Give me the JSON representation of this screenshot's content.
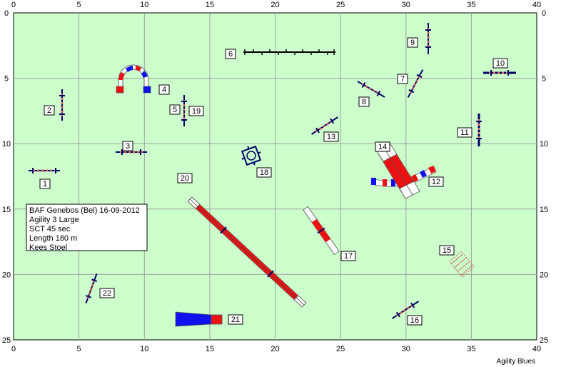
{
  "course": {
    "grid": true,
    "x_range": [
      0,
      40
    ],
    "y_range": [
      0,
      25
    ],
    "x_ticks": [
      "0",
      "5",
      "10",
      "15",
      "20",
      "25",
      "30",
      "35",
      "40"
    ],
    "y_ticks": [
      "0",
      "5",
      "10",
      "15",
      "20",
      "25"
    ]
  },
  "info_box": {
    "line1": "BAF Genebos (Bel) 16-09-2012",
    "line2": "Agility 3 Large",
    "line3": "SCT 45 sec",
    "line4": "Length 180 m",
    "line5": "Kees Stoel"
  },
  "credit": "Agility Blues",
  "obstacle_numbers": {
    "n1": "1",
    "n2": "2",
    "n3": "3",
    "n4": "4",
    "n5": "5",
    "n6": "6",
    "n7": "7",
    "n8": "8",
    "n9": "9",
    "n10": "10",
    "n11": "11",
    "n12": "12",
    "n13": "13",
    "n14": "14",
    "n15": "15",
    "n16": "16",
    "n17": "17",
    "n18": "18",
    "n19": "19",
    "n20": "20",
    "n21": "21",
    "n22": "22"
  },
  "colors": {
    "field": "#ccffcc",
    "grid": "#a0a0a0",
    "contact_red": "#ee1111",
    "tunnel_blue": "#1111ee",
    "jump_bar": "#999999",
    "stanchion": "#000066"
  }
}
